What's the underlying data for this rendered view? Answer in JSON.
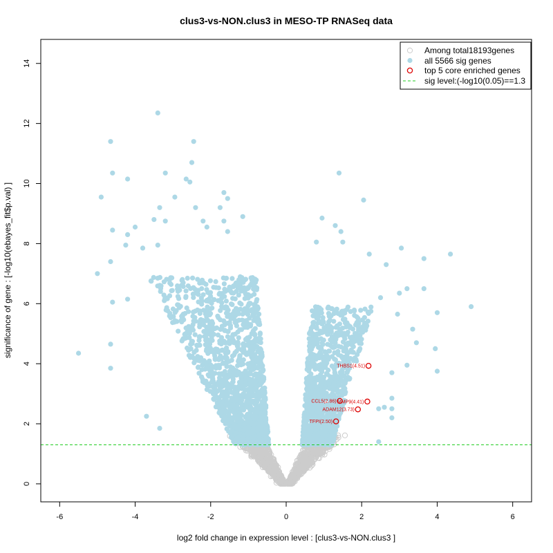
{
  "chart_data": {
    "type": "scatter",
    "title": "clus3-vs-NON.clus3 in MESO-TP RNASeq data",
    "xlabel": "log2 fold change in expression level : [clus3-vs-NON.clus3 ]",
    "ylabel": "significance of gene : [-log10(ebayes_fit$p.val) ]",
    "xlim": [
      -6.5,
      6.5
    ],
    "ylim": [
      -0.6,
      14.8
    ],
    "x_ticks": [
      -6,
      -4,
      -2,
      0,
      2,
      4,
      6
    ],
    "y_ticks": [
      0,
      2,
      4,
      6,
      8,
      10,
      12,
      14
    ],
    "sig_level": 1.3,
    "colors": {
      "background_genes": "#cccccc",
      "sig_genes": "#add8e6",
      "enriched_genes": "#dd0000",
      "sig_line": "#22cc22",
      "axis": "#000000"
    },
    "legend": {
      "position": "top-right",
      "entries": [
        "Among total18193genes",
        "all 5566 sig genes",
        "top 5 core enriched genes",
        "sig level:(-log10(0.05)==1.3"
      ]
    },
    "enriched_genes": [
      {
        "label": "THBS1(4.51)",
        "x": 2.18,
        "y": 3.93
      },
      {
        "label": "CCL5(2.86)",
        "x": 1.42,
        "y": 2.76
      },
      {
        "label": "MMP9(4.41)",
        "x": 2.15,
        "y": 2.74
      },
      {
        "label": "ADAM12(3.73)",
        "x": 1.9,
        "y": 2.48
      },
      {
        "label": "TFPI(2.50)",
        "x": 1.32,
        "y": 2.08
      }
    ],
    "notable_points": [
      {
        "x": -3.4,
        "y": 12.35
      },
      {
        "x": -4.65,
        "y": 11.4
      },
      {
        "x": -2.45,
        "y": 11.4
      },
      {
        "x": -4.6,
        "y": 10.35
      },
      {
        "x": -3.2,
        "y": 10.35
      },
      {
        "x": -4.2,
        "y": 10.15
      },
      {
        "x": -2.5,
        "y": 10.7
      },
      {
        "x": -2.65,
        "y": 10.15
      },
      {
        "x": -2.55,
        "y": 10.05
      },
      {
        "x": -4.9,
        "y": 9.55
      },
      {
        "x": -2.95,
        "y": 9.55
      },
      {
        "x": -1.65,
        "y": 9.7
      },
      {
        "x": -1.55,
        "y": 9.5
      },
      {
        "x": -3.35,
        "y": 9.2
      },
      {
        "x": -2.4,
        "y": 9.2
      },
      {
        "x": -1.75,
        "y": 9.2
      },
      {
        "x": -1.15,
        "y": 8.9
      },
      {
        "x": -3.5,
        "y": 8.8
      },
      {
        "x": -3.2,
        "y": 8.75
      },
      {
        "x": -2.2,
        "y": 8.75
      },
      {
        "x": -1.65,
        "y": 8.75
      },
      {
        "x": -4.0,
        "y": 8.55
      },
      {
        "x": -2.1,
        "y": 8.55
      },
      {
        "x": -1.55,
        "y": 8.4
      },
      {
        "x": -4.6,
        "y": 8.45
      },
      {
        "x": -4.2,
        "y": 8.3
      },
      {
        "x": -4.25,
        "y": 7.95
      },
      {
        "x": -3.4,
        "y": 7.95
      },
      {
        "x": -3.8,
        "y": 7.85
      },
      {
        "x": -5.0,
        "y": 7.0
      },
      {
        "x": -4.65,
        "y": 7.4
      },
      {
        "x": -4.2,
        "y": 6.15
      },
      {
        "x": -4.6,
        "y": 6.05
      },
      {
        "x": -4.65,
        "y": 4.65
      },
      {
        "x": -5.5,
        "y": 4.35
      },
      {
        "x": -4.65,
        "y": 3.85
      },
      {
        "x": -3.35,
        "y": 1.85
      },
      {
        "x": -3.7,
        "y": 2.25
      },
      {
        "x": 1.4,
        "y": 10.35
      },
      {
        "x": 2.05,
        "y": 9.45
      },
      {
        "x": 0.95,
        "y": 8.85
      },
      {
        "x": 1.3,
        "y": 8.6
      },
      {
        "x": 1.45,
        "y": 8.4
      },
      {
        "x": 0.8,
        "y": 8.05
      },
      {
        "x": 1.5,
        "y": 8.05
      },
      {
        "x": 3.05,
        "y": 7.85
      },
      {
        "x": 2.2,
        "y": 7.65
      },
      {
        "x": 4.35,
        "y": 7.65
      },
      {
        "x": 3.65,
        "y": 7.5
      },
      {
        "x": 2.65,
        "y": 7.3
      },
      {
        "x": 3.65,
        "y": 6.5
      },
      {
        "x": 3.2,
        "y": 6.5
      },
      {
        "x": 3.0,
        "y": 6.35
      },
      {
        "x": 2.5,
        "y": 6.2
      },
      {
        "x": 4.9,
        "y": 5.9
      },
      {
        "x": 4.0,
        "y": 5.7
      },
      {
        "x": 2.95,
        "y": 5.65
      },
      {
        "x": 3.35,
        "y": 5.15
      },
      {
        "x": 3.45,
        "y": 4.7
      },
      {
        "x": 3.95,
        "y": 4.5
      },
      {
        "x": 4.0,
        "y": 3.75
      },
      {
        "x": 3.2,
        "y": 3.95
      },
      {
        "x": 2.8,
        "y": 3.7
      },
      {
        "x": 2.8,
        "y": 2.85
      },
      {
        "x": 2.45,
        "y": 2.5
      },
      {
        "x": 2.6,
        "y": 2.55
      },
      {
        "x": 2.8,
        "y": 2.5
      },
      {
        "x": 2.8,
        "y": 2.2
      },
      {
        "x": 2.45,
        "y": 1.4
      }
    ],
    "point_counts": {
      "background_genes": 18193,
      "sig_genes": 5566,
      "enriched_genes": 5
    }
  }
}
